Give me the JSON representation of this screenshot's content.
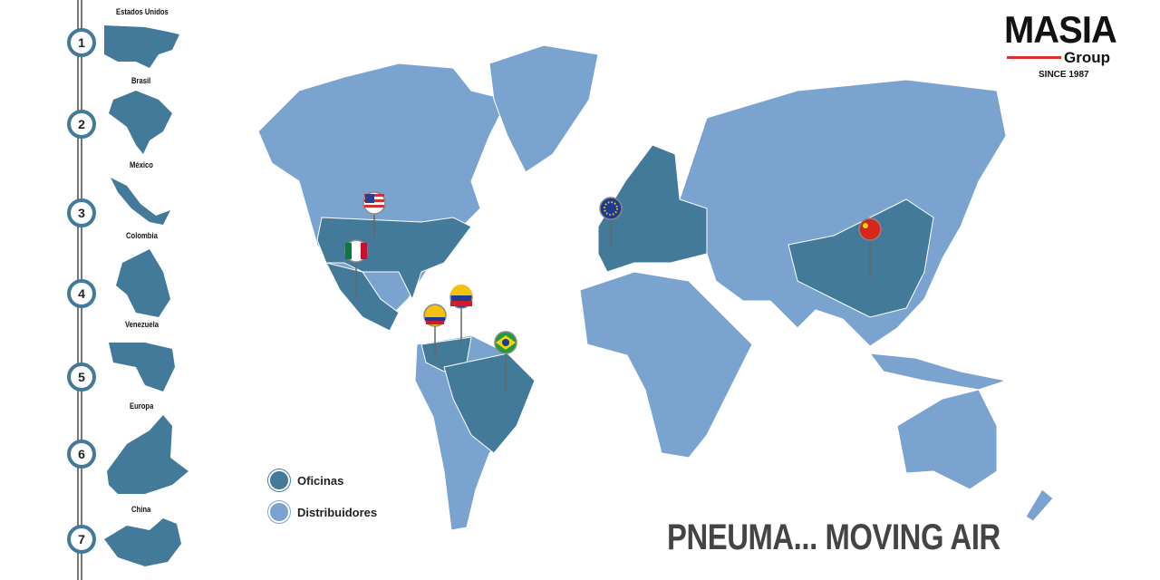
{
  "colors": {
    "offices": "#437a99",
    "distributors": "#7aa3cf",
    "accent_red": "#d8322b"
  },
  "sidebar": {
    "items": [
      {
        "number": "1",
        "label": "Estados Unidos"
      },
      {
        "number": "2",
        "label": "Brasil"
      },
      {
        "number": "3",
        "label": "México"
      },
      {
        "number": "4",
        "label": "Colombia"
      },
      {
        "number": "5",
        "label": "Venezuela"
      },
      {
        "number": "6",
        "label": "Europa"
      },
      {
        "number": "7",
        "label": "China"
      }
    ]
  },
  "logo": {
    "name": "MASIA",
    "sub": "Group",
    "since": "SINCE 1987"
  },
  "legend": {
    "offices": "Oficinas",
    "distributors": "Distribuidores"
  },
  "slogan": "PNEUMA... MOVING AIR",
  "markers": [
    {
      "country": "Estados Unidos",
      "flag": "us-flag-icon"
    },
    {
      "country": "México",
      "flag": "mexico-flag-icon"
    },
    {
      "country": "Venezuela",
      "flag": "venezuela-flag-icon"
    },
    {
      "country": "Colombia",
      "flag": "colombia-flag-icon"
    },
    {
      "country": "Brasil",
      "flag": "brazil-flag-icon"
    },
    {
      "country": "Europa",
      "flag": "eu-flag-icon"
    },
    {
      "country": "China",
      "flag": "china-flag-icon"
    }
  ]
}
